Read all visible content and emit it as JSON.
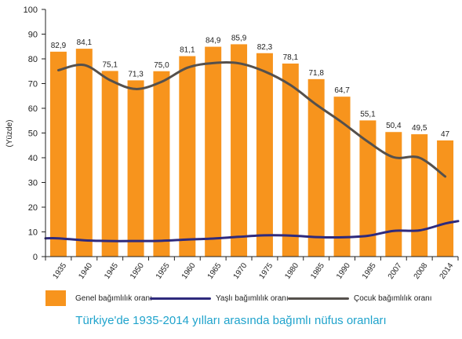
{
  "chart_data": {
    "type": "bar",
    "title": "Türkiye'de 1935-2014 yılları arasında bağımlı nüfus oranları",
    "ylabel": "(Yüzde)",
    "ylim": [
      0,
      100
    ],
    "yticks": [
      0,
      10,
      20,
      30,
      40,
      50,
      60,
      70,
      80,
      90,
      100
    ],
    "categories": [
      "1935",
      "1940",
      "1945",
      "1950",
      "1955",
      "1960",
      "1965",
      "1970",
      "1975",
      "1980",
      "1985",
      "1990",
      "1995",
      "2007",
      "2008",
      "2014"
    ],
    "series": [
      {
        "name": "Genel bağımlılık oranı",
        "type": "bar",
        "color": "#f7941d",
        "values": [
          82.9,
          84.1,
          75.1,
          71.3,
          75.0,
          81.1,
          84.9,
          85.9,
          82.3,
          78.1,
          71.8,
          64.7,
          55.1,
          50.4,
          49.5,
          47
        ],
        "labels": [
          "82,9",
          "84,1",
          "75,1",
          "71,3",
          "75,0",
          "81,1",
          "84,9",
          "85,9",
          "82,3",
          "78,1",
          "71,8",
          "64,7",
          "55,1",
          "50,4",
          "49,5",
          "47"
        ]
      },
      {
        "name": "Yaşlı bağımlılık oranı",
        "type": "line",
        "color": "#2e2a7d",
        "values": [
          7.4,
          6.6,
          6.3,
          6.3,
          6.4,
          6.9,
          7.3,
          8.0,
          8.6,
          8.5,
          7.9,
          7.8,
          8.4,
          10.4,
          10.6,
          13.4
        ]
      },
      {
        "name": "Çocuk bağımlılık oranı",
        "type": "line",
        "color": "#55504c",
        "values": [
          75.4,
          77.5,
          71.4,
          67.8,
          70.7,
          76.4,
          78.3,
          78.2,
          74.9,
          69.4,
          61.5,
          54.3,
          46.5,
          40.2,
          40.0,
          32.4
        ]
      }
    ],
    "grid": false,
    "legend_position": "bottom"
  },
  "legend": {
    "bar_label": "Genel bağımlılık oranı",
    "old_label": "Yaşlı bağımlılık oranı",
    "child_label": "Çocuk bağımlılık oranı"
  },
  "caption": "Türkiye'de 1935-2014 yılları arasında bağımlı nüfus oranları"
}
